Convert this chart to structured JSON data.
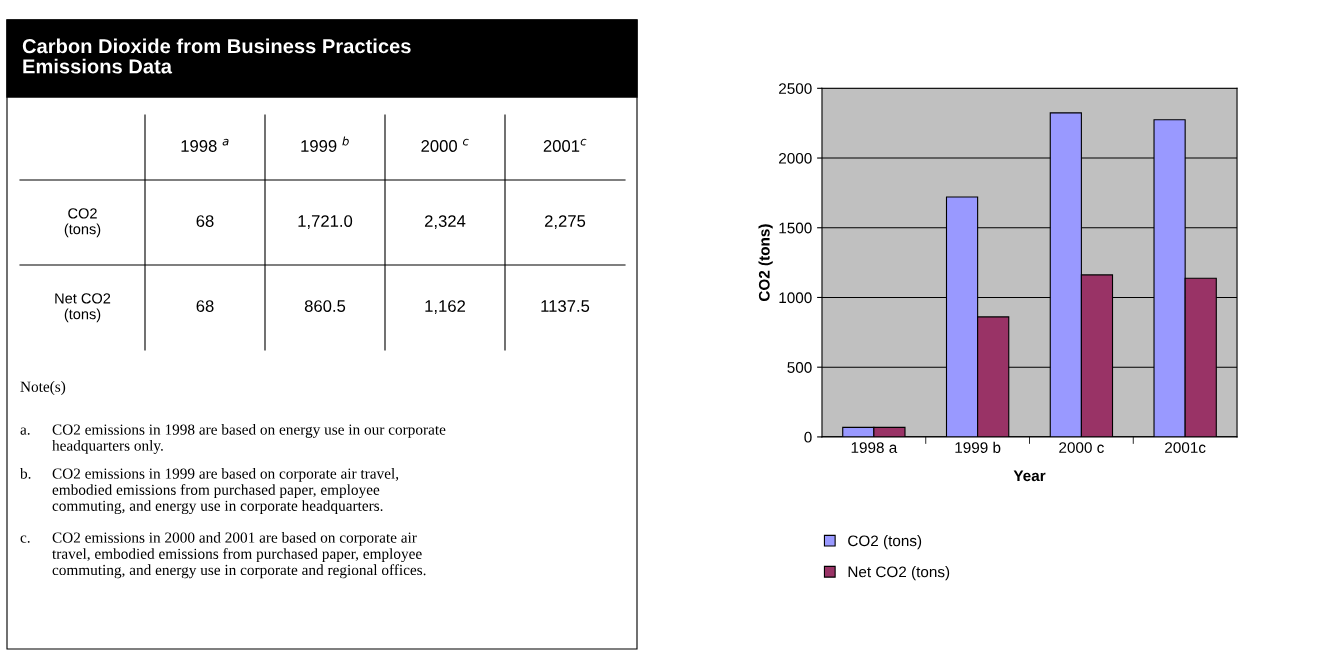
{
  "chart_data": [
    {
      "type": "other",
      "title": "Carbon Dioxide from Business Practices\nEmissions Data",
      "categories": [
        "1998 $^{a}$",
        "1999 $^{b}$",
        "2000 $^{c}$",
        "2001$^{c}$"
      ],
      "y_categories": [
        "CO2\n(tons)",
        "Net CO2\n(tons)"
      ],
      "cell_labels": [
        [
          "68",
          "1,721.0",
          "2,324",
          "2,275"
        ],
        [
          "68",
          "860.5",
          "1,162",
          "1137.5"
        ]
      ],
      "annotations": [
        "Note(s)",
        "a.\tCO2 emissions in 1998 are based on energy use in our corporate\nheadquarters only.",
        "b.\tCO2 emissions in 1999 are based on corporate air travel,\nembodied emissions from purchased paper, employee\ncommuting, and energy use in corporate headquarters.",
        "c.\tCO2 emissions in 2000 and 2001 are based on corporate air\ntravel, embodied emissions from purchased paper, employee\ncommuting, and energy use in corporate and regional offices."
      ]
    },
    {
      "type": "bar",
      "categories": [
        "1998 a",
        "1999 b",
        "2000 c",
        "2001c"
      ],
      "xlabel": "Year",
      "ylabel": "CO2 (tons)",
      "series": [
        {
          "name": "CO2 (tons)",
          "color": "#9999ff",
          "values": [
            68,
            1721,
            2324,
            2275
          ]
        },
        {
          "name": "Net CO2 (tons)",
          "color": "#993366",
          "values": [
            68,
            860.5,
            1162,
            1137.5
          ]
        }
      ],
      "ylim": [
        0,
        2500
      ],
      "yticks": [
        0,
        500,
        1000,
        1500,
        2000,
        2500
      ],
      "grid": "y",
      "legend": "bottom left"
    }
  ]
}
